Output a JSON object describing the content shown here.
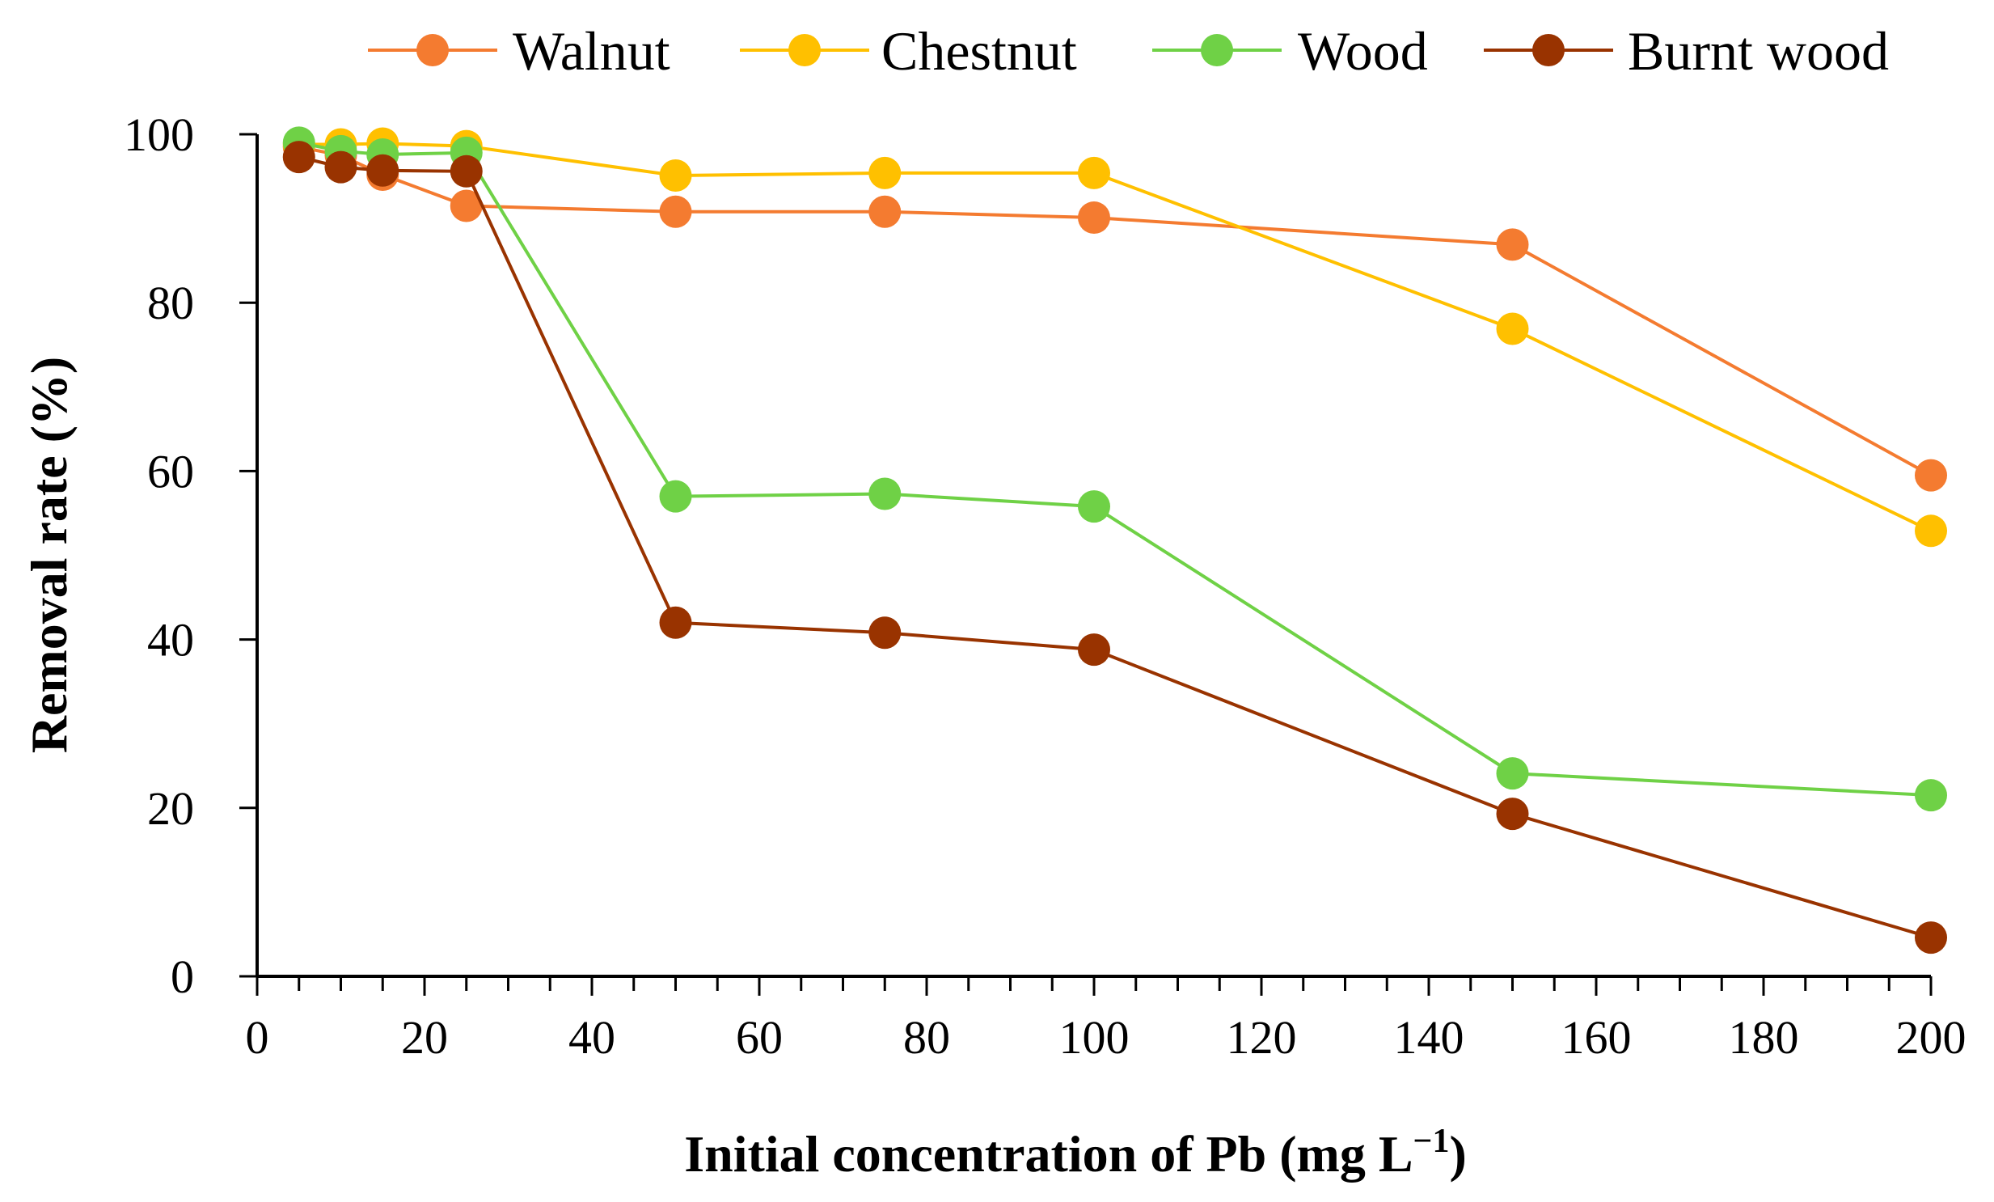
{
  "chart_data": {
    "type": "line",
    "title": "",
    "xlabel": "Initial concentration of Pb (mg L",
    "xlabel_sup": "−1",
    "xlabel_close": ")",
    "ylabel": "Removal rate (%)",
    "xlim": [
      0,
      200
    ],
    "ylim": [
      0,
      100
    ],
    "xticks": [
      0,
      20,
      40,
      60,
      80,
      100,
      120,
      140,
      160,
      180,
      200
    ],
    "yticks": [
      0,
      20,
      40,
      60,
      80,
      100
    ],
    "xtick_labels": [
      "0",
      "20",
      "40",
      "60",
      "80",
      "100",
      "120",
      "140",
      "160",
      "180",
      "200"
    ],
    "ytick_labels": [
      "0",
      "20",
      "40",
      "60",
      "80",
      "100"
    ],
    "grid": false,
    "legend_position": "top",
    "x": [
      5,
      10,
      15,
      25,
      50,
      75,
      100,
      150,
      200
    ],
    "series": [
      {
        "name": "Walnut",
        "color": "#F47B30",
        "values": [
          98.5,
          97.5,
          95.2,
          91.5,
          90.8,
          90.8,
          90.1,
          86.9,
          59.5
        ]
      },
      {
        "name": "Chestnut",
        "color": "#FFC000",
        "values": [
          98.8,
          98.8,
          98.9,
          98.6,
          95.1,
          95.4,
          95.4,
          76.9,
          52.9
        ]
      },
      {
        "name": "Wood",
        "color": "#6FD146",
        "values": [
          99.0,
          98.0,
          97.6,
          97.8,
          57.0,
          57.3,
          55.8,
          24.1,
          21.5
        ]
      },
      {
        "name": "Burnt wood",
        "color": "#993300",
        "values": [
          97.3,
          96.1,
          95.7,
          95.6,
          42.0,
          40.8,
          38.8,
          19.3,
          4.6
        ]
      }
    ]
  }
}
